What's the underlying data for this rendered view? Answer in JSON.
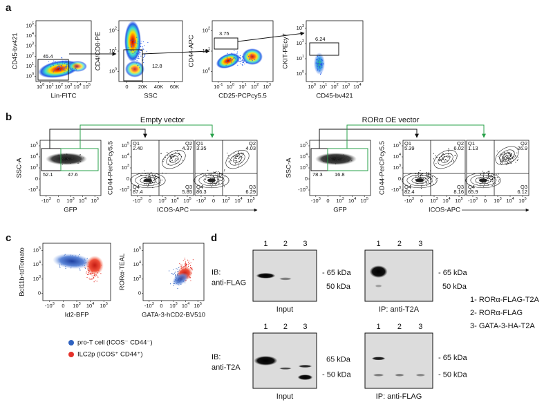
{
  "a": {
    "label": "a",
    "plots": [
      {
        "y_label": "CD45-bv421",
        "x_label": "Lin-FITC",
        "y_ticks": [
          {
            "base": "10",
            "sup": "0"
          },
          {
            "base": "10",
            "sup": "1"
          },
          {
            "base": "10",
            "sup": "2"
          },
          {
            "base": "10",
            "sup": "3"
          },
          {
            "base": "10",
            "sup": "4"
          },
          {
            "base": "10",
            "sup": "5"
          }
        ],
        "x_ticks": [
          {
            "base": "10",
            "sup": "0"
          },
          {
            "base": "10",
            "sup": "1"
          },
          {
            "base": "10",
            "sup": "2"
          },
          {
            "base": "10",
            "sup": "3"
          },
          {
            "base": "10",
            "sup": "4"
          },
          {
            "base": "10",
            "sup": "5"
          }
        ],
        "gates": [
          "45.4"
        ]
      },
      {
        "y_label": "CD4/CD8-PE",
        "x_label": "SSC",
        "y_ticks": [
          {
            "base": "10",
            "sup": "0"
          },
          {
            "base": "10",
            "sup": "1"
          },
          {
            "base": "10",
            "sup": "2"
          }
        ],
        "x_ticks": [
          "0",
          "20K",
          "40K",
          "60K"
        ],
        "gates": [
          "12.8"
        ]
      },
      {
        "y_label": "CD44-APC",
        "x_label": "CD25-PCPcy5.5",
        "y_ticks": [
          {
            "base": "10",
            "sup": "0"
          },
          {
            "base": "10",
            "sup": "1"
          },
          {
            "base": "10",
            "sup": "2"
          }
        ],
        "x_ticks": [
          {
            "base": "10",
            "sup": "-1"
          },
          {
            "base": "10",
            "sup": "0"
          },
          {
            "base": "10",
            "sup": "1"
          },
          {
            "base": "10",
            "sup": "2"
          },
          {
            "base": "10",
            "sup": "3"
          }
        ],
        "gates": [
          "3.75"
        ]
      },
      {
        "y_label": "CKIT-PEcy7",
        "x_label": "CD45-bv421",
        "y_ticks": [
          {
            "base": "10",
            "sup": "0"
          },
          {
            "base": "10",
            "sup": "1"
          },
          {
            "base": "10",
            "sup": "2"
          },
          {
            "base": "10",
            "sup": "3"
          }
        ],
        "x_ticks": [
          {
            "base": "10",
            "sup": "0"
          },
          {
            "base": "10",
            "sup": "1"
          },
          {
            "base": "10",
            "sup": "2"
          },
          {
            "base": "10",
            "sup": "3"
          },
          {
            "base": "10",
            "sup": "4"
          }
        ],
        "gates": [
          "6.24"
        ]
      }
    ]
  },
  "b": {
    "label": "b",
    "groups": [
      {
        "title": "Empty vector",
        "gfp": {
          "y_label": "SSC-A",
          "x_label": "GFP",
          "y_ticks": [
            {
              "base": "-10",
              "sup": "3"
            },
            "0",
            {
              "base": "10",
              "sup": "3"
            },
            {
              "base": "10",
              "sup": "4"
            },
            {
              "base": "10",
              "sup": "5"
            }
          ],
          "x_ticks": [
            {
              "base": "-10",
              "sup": "3"
            },
            "0",
            {
              "base": "10",
              "sup": "3"
            },
            {
              "base": "10",
              "sup": "4"
            },
            {
              "base": "10",
              "sup": "5"
            }
          ],
          "gates": [
            "52.1",
            "47.6"
          ]
        },
        "contour": {
          "y_label": "CD44-PerCPcy5.5",
          "x_label": "ICOS-APC",
          "y_ticks": [
            {
              "base": "-10",
              "sup": "3"
            },
            "0",
            {
              "base": "10",
              "sup": "3"
            },
            {
              "base": "10",
              "sup": "4"
            },
            {
              "base": "10",
              "sup": "5"
            }
          ],
          "x_ticks": [
            {
              "base": "-10",
              "sup": "3"
            },
            "0",
            {
              "base": "10",
              "sup": "3"
            },
            {
              "base": "10",
              "sup": "4"
            },
            {
              "base": "10",
              "sup": "5"
            }
          ],
          "plots": [
            {
              "quadrants": [
                {
                  "name": "Q1",
                  "value": "2.40"
                },
                {
                  "name": "Q2",
                  "value": "4.37"
                },
                {
                  "name": "Q3",
                  "value": "5.85"
                },
                {
                  "name": "Q4",
                  "value": "87.4"
                }
              ]
            },
            {
              "quadrants": [
                {
                  "name": "Q1",
                  "value": "3.35"
                },
                {
                  "name": "Q2",
                  "value": "4.03"
                },
                {
                  "name": "Q3",
                  "value": "6.29"
                },
                {
                  "name": "Q4",
                  "value": "86.3"
                }
              ]
            }
          ]
        }
      },
      {
        "title": "RORα OE vector",
        "gfp": {
          "y_label": "SSC-A",
          "x_label": "GFP",
          "y_ticks": [
            {
              "base": "-10",
              "sup": "3"
            },
            "0",
            {
              "base": "10",
              "sup": "3"
            },
            {
              "base": "10",
              "sup": "4"
            },
            {
              "base": "10",
              "sup": "5"
            }
          ],
          "x_ticks": [
            {
              "base": "-10",
              "sup": "3"
            },
            "0",
            {
              "base": "10",
              "sup": "3"
            },
            {
              "base": "10",
              "sup": "4"
            },
            {
              "base": "10",
              "sup": "5"
            }
          ],
          "gates": [
            "78.3",
            "16.8"
          ]
        },
        "contour": {
          "y_label": "CD44-PerCPcy5.5",
          "x_label": "ICOS-APC",
          "y_ticks": [
            {
              "base": "-10",
              "sup": "3"
            },
            "0",
            {
              "base": "10",
              "sup": "3"
            },
            {
              "base": "10",
              "sup": "4"
            },
            {
              "base": "10",
              "sup": "5"
            }
          ],
          "x_ticks": [
            {
              "base": "-10",
              "sup": "3"
            },
            "0",
            {
              "base": "10",
              "sup": "3"
            },
            {
              "base": "10",
              "sup": "4"
            },
            {
              "base": "10",
              "sup": "5"
            }
          ],
          "plots": [
            {
              "quadrants": [
                {
                  "name": "Q1",
                  "value": "5.39"
                },
                {
                  "name": "Q2",
                  "value": "6.02"
                },
                {
                  "name": "Q3",
                  "value": "8.16"
                },
                {
                  "name": "Q4",
                  "value": "82.4"
                }
              ]
            },
            {
              "quadrants": [
                {
                  "name": "Q1",
                  "value": "1.13"
                },
                {
                  "name": "Q2",
                  "value": "26.9"
                },
                {
                  "name": "Q3",
                  "value": "6.12"
                },
                {
                  "name": "Q4",
                  "value": "65.9"
                }
              ]
            }
          ]
        }
      }
    ]
  },
  "c": {
    "label": "c",
    "plots": [
      {
        "y_label": "Bcl11b-tdTomato",
        "x_label": "Id2-BFP",
        "y_ticks": [
          "0",
          {
            "base": "10",
            "sup": "3"
          },
          {
            "base": "10",
            "sup": "4"
          },
          {
            "base": "10",
            "sup": "5"
          }
        ],
        "x_ticks": [
          {
            "base": "-10",
            "sup": "3"
          },
          "0",
          {
            "base": "10",
            "sup": "3"
          },
          {
            "base": "10",
            "sup": "4"
          },
          {
            "base": "10",
            "sup": "5"
          }
        ]
      },
      {
        "y_label": "RORα-TEAL",
        "x_label": "GATA-3-hCD2-BV510",
        "y_ticks": [
          "0",
          {
            "base": "10",
            "sup": "3"
          },
          {
            "base": "10",
            "sup": "4"
          },
          {
            "base": "10",
            "sup": "5"
          }
        ],
        "x_ticks": [
          {
            "base": "-10",
            "sup": "3"
          },
          "0",
          {
            "base": "10",
            "sup": "3"
          },
          {
            "base": "10",
            "sup": "4"
          },
          {
            "base": "10",
            "sup": "5"
          }
        ]
      }
    ],
    "legend": [
      {
        "name": "pro-T cell (ICOS⁻ CD44⁻)",
        "color": "#2f62c0"
      },
      {
        "name": "ILC2p (ICOS⁺ CD44⁺)",
        "color": "#e5322a"
      }
    ]
  },
  "d": {
    "label": "d",
    "blots": [
      {
        "ib": "IB:",
        "antibody": "anti-FLAG",
        "panels": [
          {
            "lanes": [
              "1",
              "2",
              "3"
            ],
            "caption": "Input",
            "markers": [
              "- 65 kDa",
              "50 kDa"
            ]
          },
          {
            "lanes": [
              "1",
              "2",
              "3"
            ],
            "caption": "IP: anti-T2A",
            "markers": [
              "- 65 kDa",
              "50 kDa"
            ]
          }
        ]
      },
      {
        "ib": "IB:",
        "antibody": "anti-T2A",
        "panels": [
          {
            "lanes": [
              "1",
              "2",
              "3"
            ],
            "caption": "Input",
            "markers": [
              "65 kDa",
              "- 50 kDa"
            ]
          },
          {
            "lanes": [
              "1",
              "2",
              "3"
            ],
            "caption": "IP: anti-FLAG",
            "markers": [
              "- 65 kDa",
              "- 50 kDa"
            ]
          }
        ]
      }
    ],
    "legend": [
      "1- RORα-FLAG-T2A",
      "2- RORα-FLAG",
      "3- GATA-3-HA-T2A"
    ]
  }
}
